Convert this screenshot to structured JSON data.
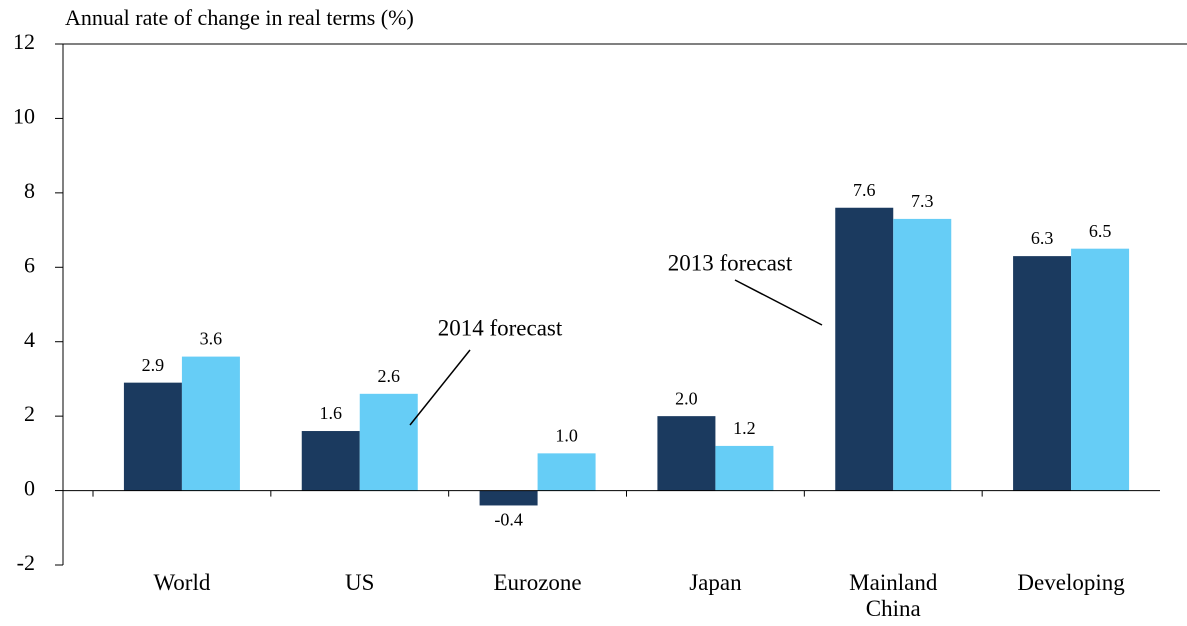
{
  "chart_data": {
    "type": "bar",
    "y_label": "Annual rate of change in real terms (%)",
    "categories": [
      "World",
      "US",
      "Eurozone",
      "Japan",
      "Mainland China",
      "Developing"
    ],
    "series": [
      {
        "name": "2013 forecast",
        "color": "#1b3a5f",
        "values": [
          2.9,
          1.6,
          -0.4,
          2.0,
          7.6,
          6.3
        ],
        "value_labels": [
          "2.9",
          "1.6",
          "-0.4",
          "2.0",
          "7.6",
          "6.3"
        ]
      },
      {
        "name": "2014 forecast",
        "color": "#66cdf6",
        "values": [
          3.6,
          2.6,
          1.0,
          1.2,
          7.3,
          6.5
        ],
        "value_labels": [
          "3.6",
          "2.6",
          "1.0",
          "1.2",
          "7.3",
          "6.5"
        ]
      }
    ],
    "ylim": [
      -2,
      12
    ],
    "yticks": [
      -2,
      0,
      2,
      4,
      6,
      8,
      10,
      12
    ],
    "grid": false
  }
}
